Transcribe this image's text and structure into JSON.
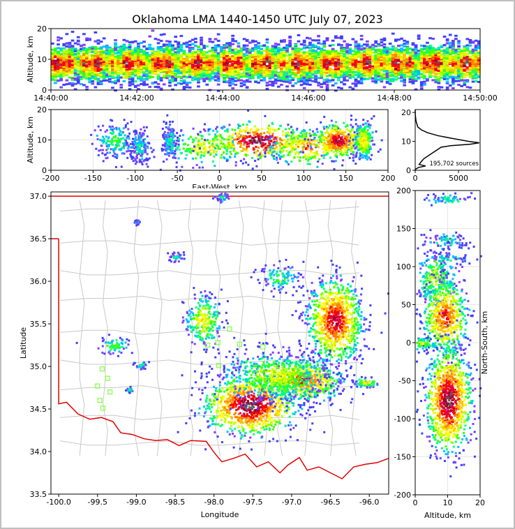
{
  "title": "Oklahoma LMA 1440-1450 UTC July 07, 2023",
  "chart_data": [
    {
      "id": "time_height",
      "type": "heatmap",
      "xlabel": "",
      "ylabel": "Altitude, km",
      "x_ticks": [
        "14:40:00",
        "14:42:00",
        "14:44:00",
        "14:46:00",
        "14:48:00",
        "14:50:00"
      ],
      "x_tick_values": [
        0,
        2,
        4,
        6,
        8,
        10
      ],
      "xlim": [
        0,
        10
      ],
      "y_ticks": [
        0,
        10,
        20
      ],
      "ylim": [
        0,
        20
      ],
      "grid": true,
      "density_peak_altitude_km": 9
    },
    {
      "id": "ew_altitude",
      "type": "heatmap",
      "xlabel": "East-West, km",
      "ylabel": "Altitude, km",
      "xlim": [
        -200,
        200
      ],
      "ylim": [
        0,
        20
      ],
      "x_ticks": [
        -200,
        -150,
        -100,
        -50,
        0,
        50,
        100,
        150,
        200
      ],
      "y_ticks": [
        0,
        10,
        20
      ],
      "grid": true,
      "clusters": [
        {
          "x": -125,
          "alt": 10,
          "spread_x": 12,
          "level": 0.35
        },
        {
          "x": -95,
          "alt": 8,
          "spread_x": 6,
          "level": 0.3
        },
        {
          "x": -60,
          "alt": 10,
          "spread_x": 4,
          "level": 0.3
        },
        {
          "x": -15,
          "alt": 8,
          "spread_x": 25,
          "level": 0.55
        },
        {
          "x": 45,
          "alt": 10,
          "spread_x": 28,
          "level": 1.0
        },
        {
          "x": 105,
          "alt": 8,
          "spread_x": 25,
          "level": 0.7
        },
        {
          "x": 140,
          "alt": 10,
          "spread_x": 15,
          "level": 0.9
        },
        {
          "x": 170,
          "alt": 10,
          "spread_x": 6,
          "level": 0.6
        }
      ]
    },
    {
      "id": "altitude_histogram",
      "type": "line",
      "xlabel": "",
      "ylabel": "",
      "xlim": [
        0,
        7500
      ],
      "ylim": [
        0,
        21
      ],
      "x_ticks": [
        0,
        5000
      ],
      "y_ticks": [
        0,
        10,
        20
      ],
      "annotation": "195,702 sources",
      "points": [
        [
          0,
          21
        ],
        [
          20,
          19
        ],
        [
          100,
          17
        ],
        [
          300,
          15
        ],
        [
          700,
          14
        ],
        [
          1400,
          13
        ],
        [
          2600,
          12
        ],
        [
          4300,
          11
        ],
        [
          6200,
          10
        ],
        [
          7400,
          9.5
        ],
        [
          6300,
          9
        ],
        [
          4100,
          8.5
        ],
        [
          3000,
          8
        ],
        [
          2500,
          7
        ],
        [
          2000,
          6
        ],
        [
          1500,
          5
        ],
        [
          1000,
          4
        ],
        [
          700,
          3
        ],
        [
          450,
          2
        ],
        [
          1200,
          1.5
        ],
        [
          400,
          1
        ],
        [
          100,
          0.5
        ],
        [
          0,
          0
        ]
      ]
    },
    {
      "id": "plan_view",
      "type": "heatmap",
      "xlabel": "Longitude",
      "ylabel": "Latitude",
      "xlim": [
        -100.1,
        -95.75
      ],
      "ylim": [
        33.5,
        37.05
      ],
      "x_ticks": [
        -100.0,
        -99.5,
        -99.0,
        -98.5,
        -98.0,
        -97.5,
        -97.0,
        -96.5,
        -96.0
      ],
      "x_tick_labels": [
        "-100.0",
        "-99.5",
        "-99.0",
        "-98.5",
        "-98.0",
        "-97.5",
        "-97.0",
        "-96.5",
        "-96.0"
      ],
      "y_ticks": [
        33.5,
        34.0,
        34.5,
        35.0,
        35.5,
        36.0,
        36.5,
        37.0
      ],
      "y_tick_labels": [
        "33.5",
        "34.0",
        "34.5",
        "35.0",
        "35.5",
        "36.0",
        "36.5",
        "37.0"
      ],
      "state_border_color": "#e00000",
      "county_line_color": "#c8c8c8",
      "station_color": "#80ff40",
      "stations": [
        [
          -99.44,
          34.97
        ],
        [
          -99.37,
          34.86
        ],
        [
          -99.5,
          34.77
        ],
        [
          -99.34,
          34.7
        ],
        [
          -99.47,
          34.6
        ],
        [
          -99.43,
          34.51
        ],
        [
          -98.08,
          35.25
        ],
        [
          -97.95,
          35.28
        ],
        [
          -97.94,
          35.01
        ],
        [
          -97.8,
          35.44
        ],
        [
          -97.67,
          35.26
        ],
        [
          -97.37,
          35.23
        ]
      ],
      "clusters": [
        {
          "lon": -97.55,
          "lat": 34.55,
          "spread_lon": 0.3,
          "spread_lat": 0.18,
          "level": 1.0
        },
        {
          "lon": -96.85,
          "lat": 34.85,
          "spread_lon": 0.25,
          "spread_lat": 0.12,
          "level": 0.8
        },
        {
          "lon": -96.45,
          "lat": 35.55,
          "spread_lon": 0.18,
          "spread_lat": 0.25,
          "level": 0.9
        },
        {
          "lon": -97.2,
          "lat": 34.9,
          "spread_lon": 0.35,
          "spread_lat": 0.15,
          "level": 0.5
        },
        {
          "lon": -98.15,
          "lat": 35.55,
          "spread_lon": 0.12,
          "spread_lat": 0.15,
          "level": 0.55
        },
        {
          "lon": -97.15,
          "lat": 36.05,
          "spread_lon": 0.15,
          "spread_lat": 0.08,
          "level": 0.35
        },
        {
          "lon": -96.05,
          "lat": 34.82,
          "spread_lon": 0.08,
          "spread_lat": 0.03,
          "level": 0.55
        },
        {
          "lon": -99.3,
          "lat": 35.25,
          "spread_lon": 0.1,
          "spread_lat": 0.05,
          "level": 0.4
        },
        {
          "lon": -98.95,
          "lat": 35.02,
          "spread_lon": 0.05,
          "spread_lat": 0.02,
          "level": 0.3
        },
        {
          "lon": -98.5,
          "lat": 36.3,
          "spread_lon": 0.05,
          "spread_lat": 0.03,
          "level": 0.3
        },
        {
          "lon": -97.9,
          "lat": 37.0,
          "spread_lon": 0.05,
          "spread_lat": 0.03,
          "level": 0.3
        },
        {
          "lon": -99.1,
          "lat": 34.73,
          "spread_lon": 0.02,
          "spread_lat": 0.02,
          "level": 0.3
        },
        {
          "lon": -99.0,
          "lat": 36.7,
          "spread_lon": 0.02,
          "spread_lat": 0.01,
          "level": 0.25
        }
      ]
    },
    {
      "id": "ns_altitude",
      "type": "heatmap",
      "xlabel": "Altitude, km",
      "ylabel": "North-South, km",
      "xlim": [
        0,
        20
      ],
      "ylim": [
        -200,
        200
      ],
      "x_ticks": [
        0,
        10,
        20
      ],
      "y_ticks": [
        -200,
        -150,
        -100,
        -50,
        0,
        50,
        100,
        150,
        200
      ],
      "grid": true,
      "clusters": [
        {
          "ns": 190,
          "alt": 10,
          "spread_ns": 4,
          "level": 0.3
        },
        {
          "ns": 135,
          "alt": 9,
          "spread_ns": 6,
          "level": 0.3
        },
        {
          "ns": 112,
          "alt": 10,
          "spread_ns": 3,
          "level": 0.3
        },
        {
          "ns": 85,
          "alt": 6,
          "spread_ns": 20,
          "level": 0.45
        },
        {
          "ns": 35,
          "alt": 9,
          "spread_ns": 25,
          "level": 0.8
        },
        {
          "ns": -75,
          "alt": 10,
          "spread_ns": 35,
          "level": 1.0
        },
        {
          "ns": 0,
          "alt": 1,
          "spread_ns": 4,
          "level": 0.5
        }
      ]
    }
  ]
}
